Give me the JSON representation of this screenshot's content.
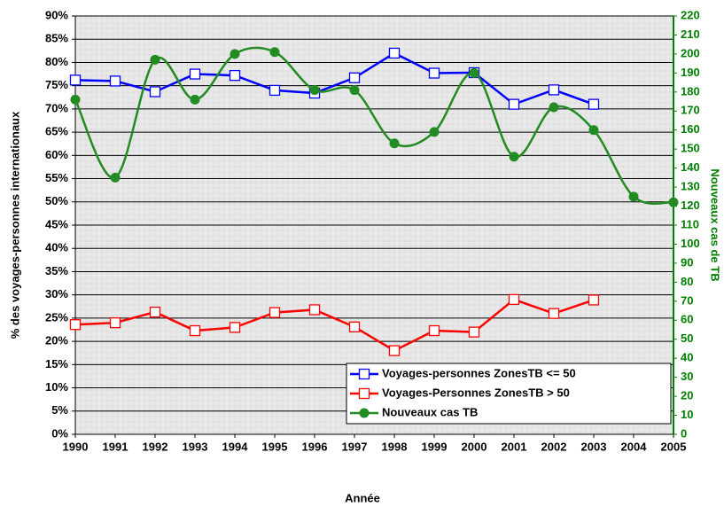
{
  "chart_data": {
    "type": "line",
    "x_label": "Année",
    "y_label": "% des voyages-personnes internationaux",
    "y2_label": "Nouveaux cas de TB",
    "x": [
      1990,
      1991,
      1992,
      1993,
      1994,
      1995,
      1996,
      1997,
      1998,
      1999,
      2000,
      2001,
      2002,
      2003,
      2004,
      2005
    ],
    "xlim": [
      1990,
      2005
    ],
    "xticks": [
      1990,
      1991,
      1992,
      1993,
      1994,
      1995,
      1996,
      1997,
      1998,
      1999,
      2000,
      2001,
      2002,
      2003,
      2004,
      2005
    ],
    "ylim": [
      0,
      90
    ],
    "yticks": [
      {
        "value": 0,
        "label": "0%"
      },
      {
        "value": 5,
        "label": "5%"
      },
      {
        "value": 10,
        "label": "10%"
      },
      {
        "value": 15,
        "label": "15%"
      },
      {
        "value": 20,
        "label": "20%"
      },
      {
        "value": 25,
        "label": "25%"
      },
      {
        "value": 30,
        "label": "30%"
      },
      {
        "value": 35,
        "label": "35%"
      },
      {
        "value": 40,
        "label": "40%"
      },
      {
        "value": 45,
        "label": "45%"
      },
      {
        "value": 50,
        "label": "50%"
      },
      {
        "value": 55,
        "label": "55%"
      },
      {
        "value": 60,
        "label": "60%"
      },
      {
        "value": 65,
        "label": "65%"
      },
      {
        "value": 70,
        "label": "70%"
      },
      {
        "value": 75,
        "label": "75%"
      },
      {
        "value": 80,
        "label": "80%"
      },
      {
        "value": 85,
        "label": "85%"
      },
      {
        "value": 90,
        "label": "90%"
      }
    ],
    "y2lim": [
      0,
      220
    ],
    "y2ticks": [
      0,
      10,
      20,
      30,
      40,
      50,
      60,
      70,
      80,
      90,
      100,
      110,
      120,
      130,
      140,
      150,
      160,
      170,
      180,
      190,
      200,
      210,
      220
    ],
    "grid": true,
    "legend": "lower right",
    "y2_color": "#008000",
    "series": [
      {
        "name": "Voyages-personnes ZonesTB <= 50",
        "color": "#0000ff",
        "marker": "open-square",
        "smooth": false,
        "values": [
          76.2,
          76,
          73.7,
          77.5,
          77.2,
          74,
          73.4,
          76.7,
          82,
          77.7,
          77.8,
          71,
          74.1,
          71,
          null,
          null
        ]
      },
      {
        "name": "Voyages-Personnes ZonesTB > 50",
        "color": "#ff0000",
        "marker": "open-square",
        "smooth": false,
        "values": [
          23.6,
          24,
          26.3,
          22.3,
          23,
          26.2,
          26.8,
          23.1,
          18,
          22.3,
          22,
          29,
          26,
          28.9,
          null,
          null
        ]
      },
      {
        "name": "Nouveaux cas TB",
        "color": "#228b22",
        "marker": "filled-circle",
        "smooth": true,
        "axis": "y2",
        "values": [
          176,
          135,
          197,
          176,
          200,
          201,
          181,
          181,
          153,
          159,
          190,
          146,
          172,
          160,
          125,
          122
        ]
      }
    ]
  }
}
